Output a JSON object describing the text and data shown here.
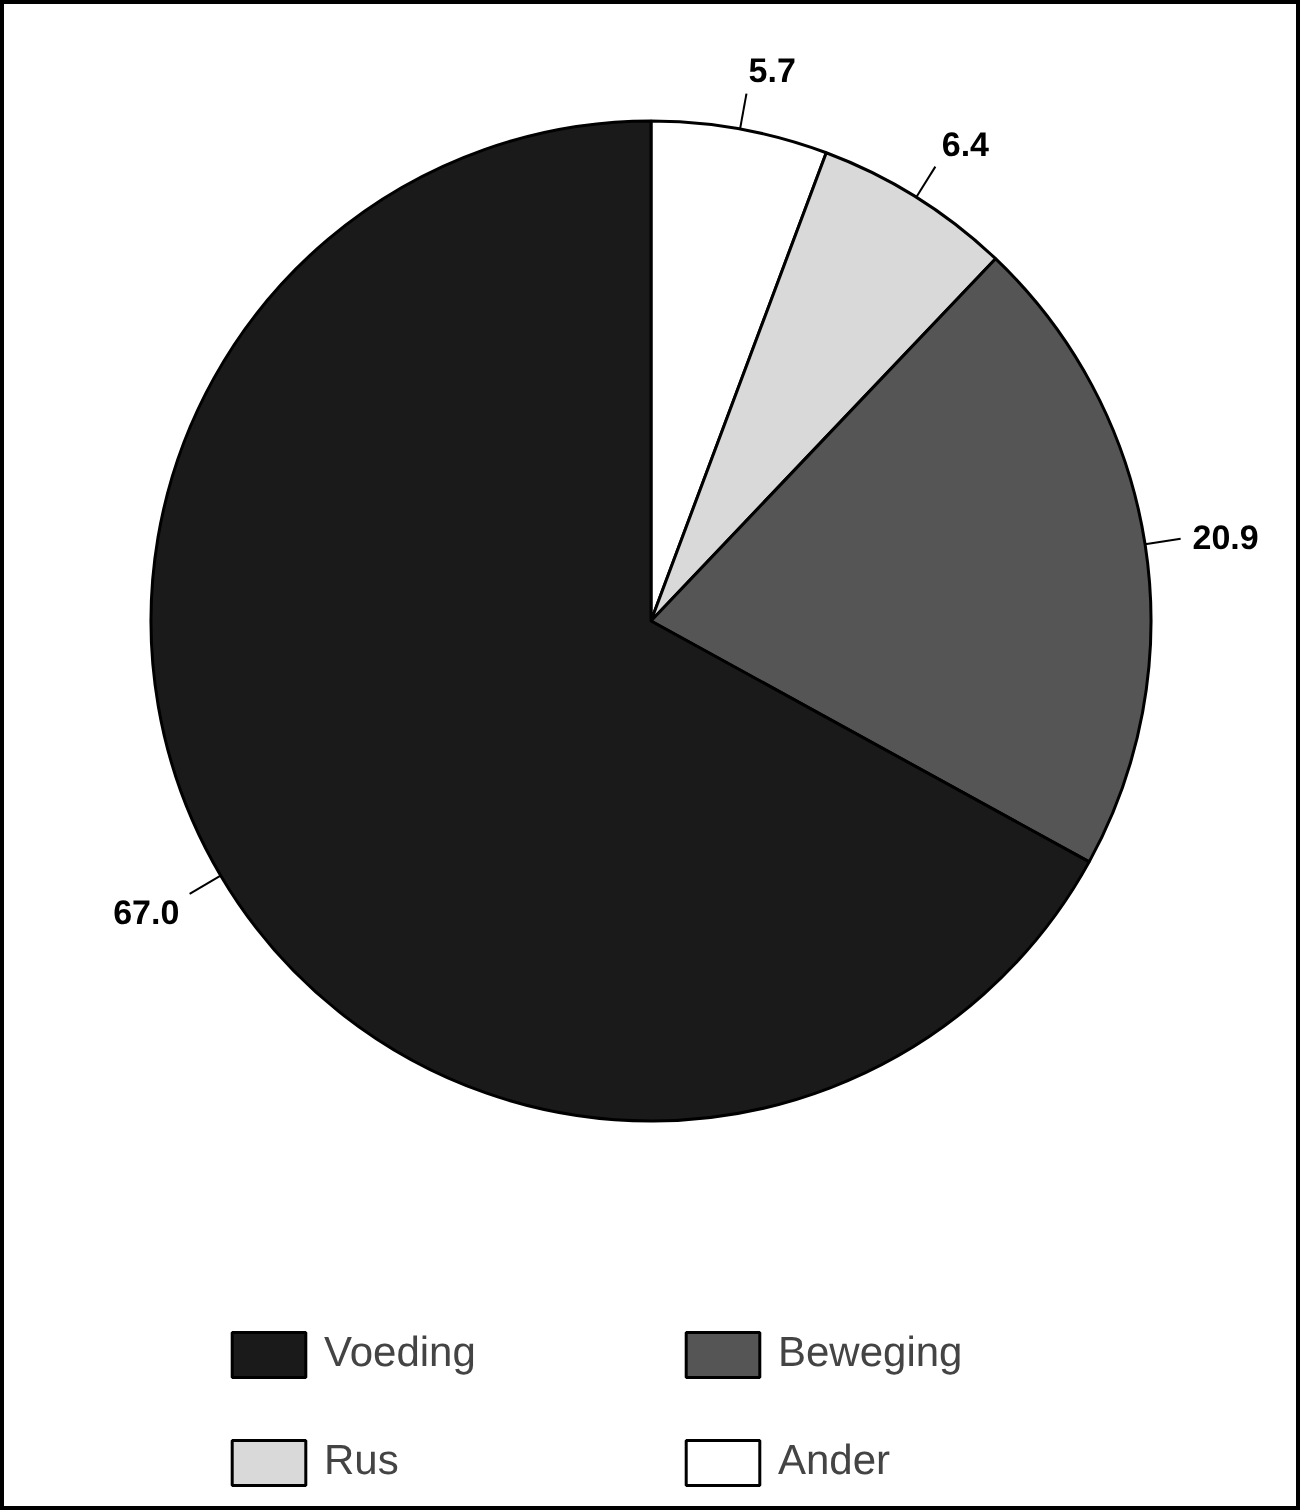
{
  "chart_data": {
    "type": "pie",
    "categories": [
      "Ander",
      "Rus",
      "Beweging",
      "Voeding"
    ],
    "values": [
      5.7,
      6.4,
      20.9,
      67.0
    ],
    "colors": [
      "#ffffff",
      "#d9d9d9",
      "#555555",
      "#1a1a1a"
    ],
    "value_labels": [
      "5.7",
      "6.4",
      "20.9",
      "67.0"
    ],
    "legend": "bottom"
  }
}
